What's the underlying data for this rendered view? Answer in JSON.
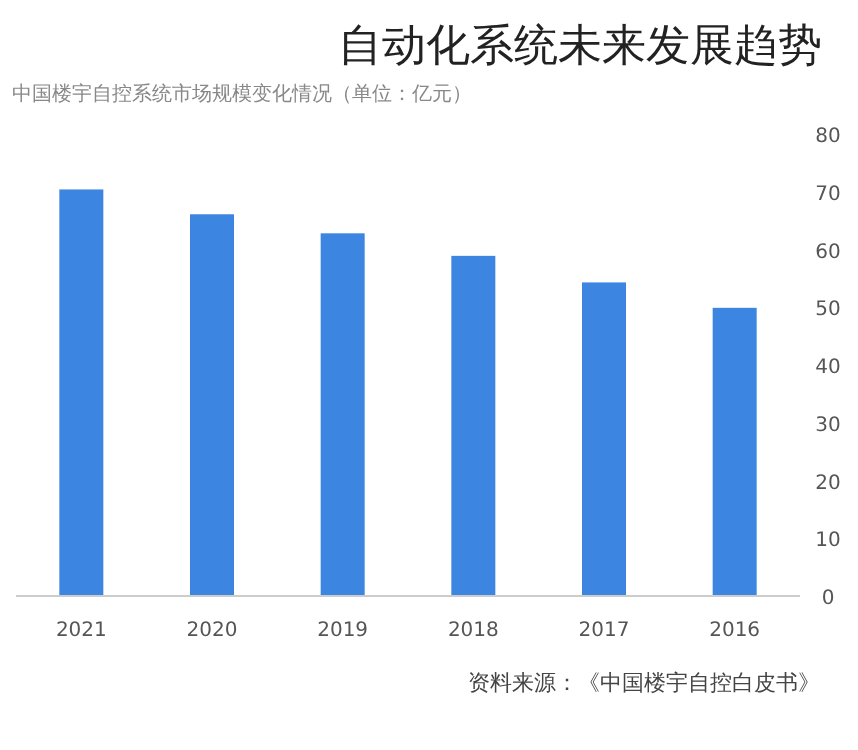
{
  "chart_data": {
    "type": "bar",
    "title": "自动化系统未来发展趋势",
    "subtitle": "中国楼宇自控系统市场规模变化情况（单位：亿元）",
    "categories": [
      "2021",
      "2020",
      "2019",
      "2018",
      "2017",
      "2016"
    ],
    "values": [
      70.4,
      66.1,
      62.8,
      58.9,
      54.3,
      49.9
    ],
    "color": "#3c85e0",
    "ylim": [
      0,
      80
    ],
    "yticks": [
      0,
      10,
      20,
      30,
      40,
      50,
      60,
      70,
      80
    ],
    "grid": false,
    "annotations": [
      "资料来源：《中国楼宇自控白皮书》"
    ]
  }
}
